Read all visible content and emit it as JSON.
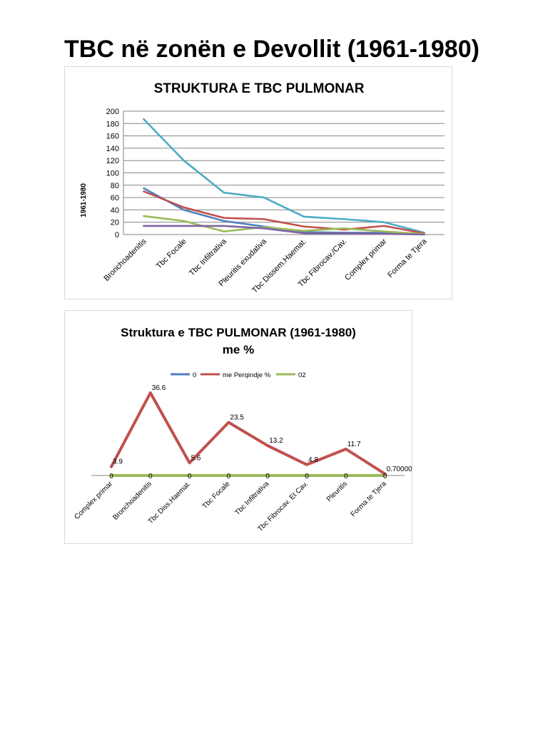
{
  "page": {
    "title": "TBC në zonën e Devollit  (1961-1980)"
  },
  "chart_data": [
    {
      "type": "line",
      "title": "STRUKTURA E TBC PULMONAR",
      "xlabel": "",
      "ylabel": "1961-1980",
      "ylim": [
        0,
        200
      ],
      "yticks": [
        0,
        20,
        40,
        60,
        80,
        100,
        120,
        140,
        160,
        180,
        200
      ],
      "grid": true,
      "legend": "none",
      "categories": [
        "Bronchoadenitis",
        "Tbc Focale",
        "Tbc Infiltrativa",
        "Pleuritis exudativa",
        "Tbc Dissem.Haemat.",
        "Tbc Fibrocav./Cav.",
        "Complex primar",
        "Forma te Tjera"
      ],
      "series": [
        {
          "color": "#4bacc6",
          "values": [
            187,
            120,
            68,
            60,
            29,
            25,
            20,
            3
          ]
        },
        {
          "color": "#4f81bd",
          "values": [
            75,
            40,
            22,
            13,
            4,
            3,
            3,
            1
          ]
        },
        {
          "color": "#c0504d",
          "values": [
            70,
            44,
            27,
            25,
            13,
            8,
            14,
            2
          ]
        },
        {
          "color": "#9bbb59",
          "values": [
            30,
            22,
            5,
            12,
            6,
            10,
            5,
            1
          ]
        },
        {
          "color": "#8064a2",
          "values": [
            14,
            14,
            14,
            10,
            2,
            2,
            1,
            0
          ]
        }
      ]
    },
    {
      "type": "line",
      "title": "Struktura e TBC PULMONAR (1961-1980)",
      "subtitle": "me %",
      "xlabel": "",
      "ylabel": "",
      "grid": false,
      "legend": "top-center",
      "categories": [
        "Complex primar",
        "Bronchoadenitis",
        "Tbc Diss.Haemat.",
        "Tbc Focale",
        "Tbc Infiltrativa",
        "Tbc Fibrocav. Et Cav.",
        "Pleuritis",
        "Forma te Tjera"
      ],
      "series": [
        {
          "name": "0",
          "color": "#4f81bd",
          "values": [
            0,
            0,
            0,
            0,
            0,
            0,
            0,
            0
          ],
          "labels": [
            "0",
            "0",
            "0",
            "0",
            "0",
            "0",
            "0",
            "0"
          ]
        },
        {
          "name": "me Perqindje %",
          "color": "#c0504d",
          "values": [
            3.9,
            36.6,
            5.6,
            23.5,
            13.2,
            4.8,
            11.7,
            0.7
          ],
          "labels": [
            "3.9",
            "36.6",
            "5.6",
            "23.5",
            "13.2",
            "4.8",
            "11.7",
            "0.70000000000000"
          ],
          "label_wrap": "1"
        },
        {
          "name": "02",
          "color": "#9bbb59",
          "values": [
            0,
            0,
            0,
            0,
            0,
            0,
            0,
            0
          ],
          "labels": []
        }
      ]
    }
  ]
}
